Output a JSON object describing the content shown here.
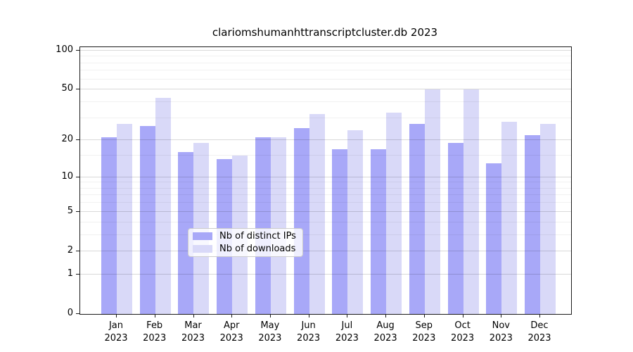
{
  "title": "clariomshumanhttranscriptcluster.db 2023",
  "legend": {
    "items": [
      {
        "label": "Nb of distinct IPs",
        "color": "#a8a8f8"
      },
      {
        "label": "Nb of downloads",
        "color": "#d9d9f8"
      }
    ]
  },
  "x_axis": {
    "months": [
      "Jan",
      "Feb",
      "Mar",
      "Apr",
      "May",
      "Jun",
      "Jul",
      "Aug",
      "Sep",
      "Oct",
      "Nov",
      "Dec"
    ],
    "year": "2023"
  },
  "y_axis": {
    "tick_labels": [
      "100",
      "50",
      "20",
      "10",
      "5",
      "2",
      "1",
      "0"
    ]
  },
  "chart_data": {
    "type": "bar",
    "title": "clariomshumanhttranscriptcluster.db 2023",
    "categories": [
      "Jan 2023",
      "Feb 2023",
      "Mar 2023",
      "Apr 2023",
      "May 2023",
      "Jun 2023",
      "Jul 2023",
      "Aug 2023",
      "Sep 2023",
      "Oct 2023",
      "Nov 2023",
      "Dec 2023"
    ],
    "series": [
      {
        "name": "Nb of distinct IPs",
        "color": "#a8a8f8",
        "values": [
          21,
          26,
          16,
          14,
          21,
          25,
          17,
          17,
          27,
          19,
          13,
          22
        ]
      },
      {
        "name": "Nb of downloads",
        "color": "#d9d9f8",
        "values": [
          27,
          43,
          19,
          15,
          21,
          32,
          24,
          33,
          50,
          50,
          28,
          27
        ]
      }
    ],
    "yscale": "log10(1+x)",
    "ylim": [
      0,
      105
    ],
    "y_major_ticks": [
      0,
      1,
      2,
      5,
      10,
      20,
      50,
      100
    ],
    "y_minor_gridlines": [
      3,
      4,
      6,
      7,
      8,
      9,
      15,
      30,
      40,
      60,
      70,
      80,
      90
    ],
    "grid": true,
    "grid_over_bars": true,
    "legend_position": "lower center",
    "xlabel": "",
    "ylabel": ""
  }
}
